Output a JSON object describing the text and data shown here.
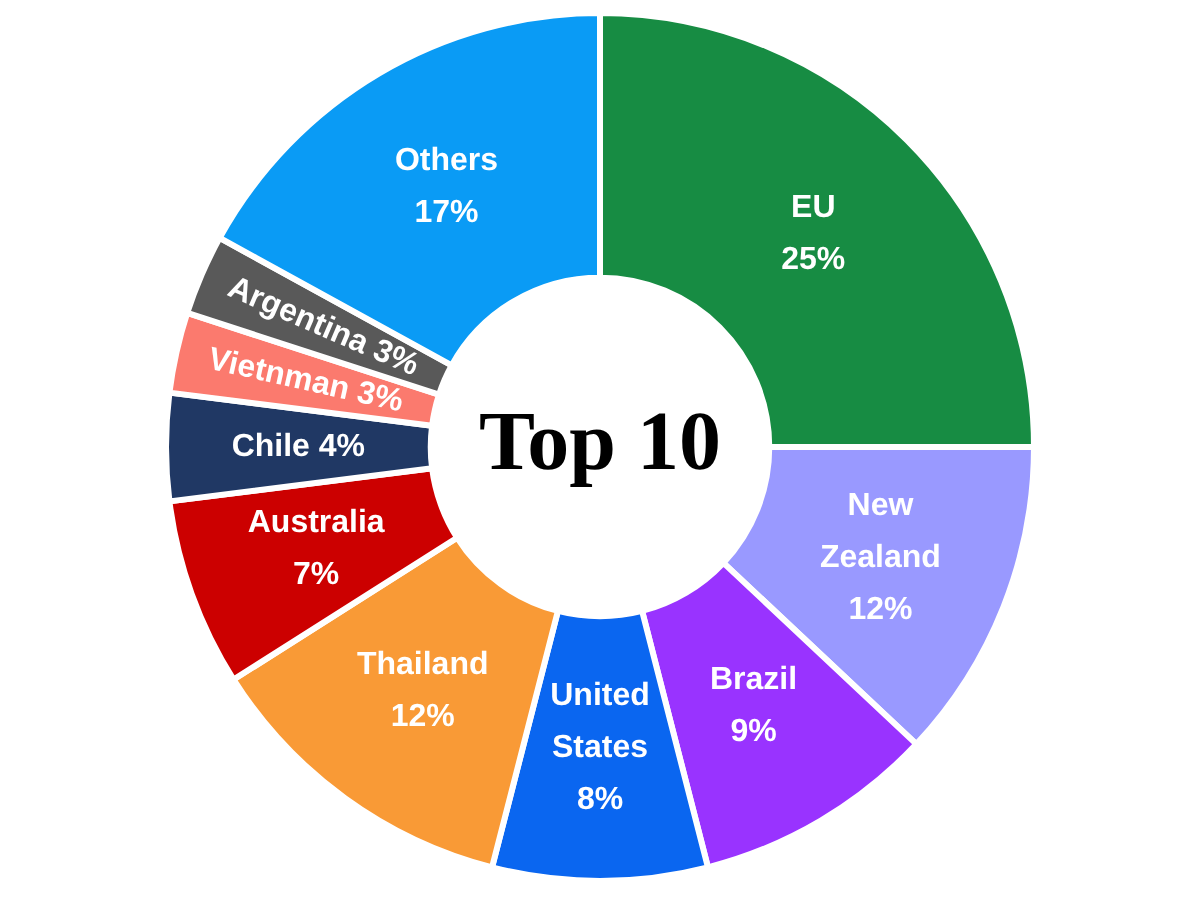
{
  "chart_data": {
    "type": "donut",
    "title": "Top 10",
    "categories": [
      "EU",
      "New Zealand",
      "Brazil",
      "United States",
      "Thailand",
      "Australia",
      "Chile",
      "Vietnman",
      "Argentina",
      "Others"
    ],
    "values": [
      25,
      12,
      9,
      8,
      12,
      7,
      4,
      3,
      3,
      17
    ],
    "value_labels": [
      "25%",
      "12%",
      "9%",
      "8%",
      "12%",
      "7%",
      "4%",
      "3%",
      "3%",
      "17%"
    ],
    "colors": [
      "#178c43",
      "#9999ff",
      "#9933ff",
      "#0a66f0",
      "#f99a36",
      "#cc0000",
      "#203864",
      "#fb7a6e",
      "#595959",
      "#0a9bf5"
    ]
  }
}
